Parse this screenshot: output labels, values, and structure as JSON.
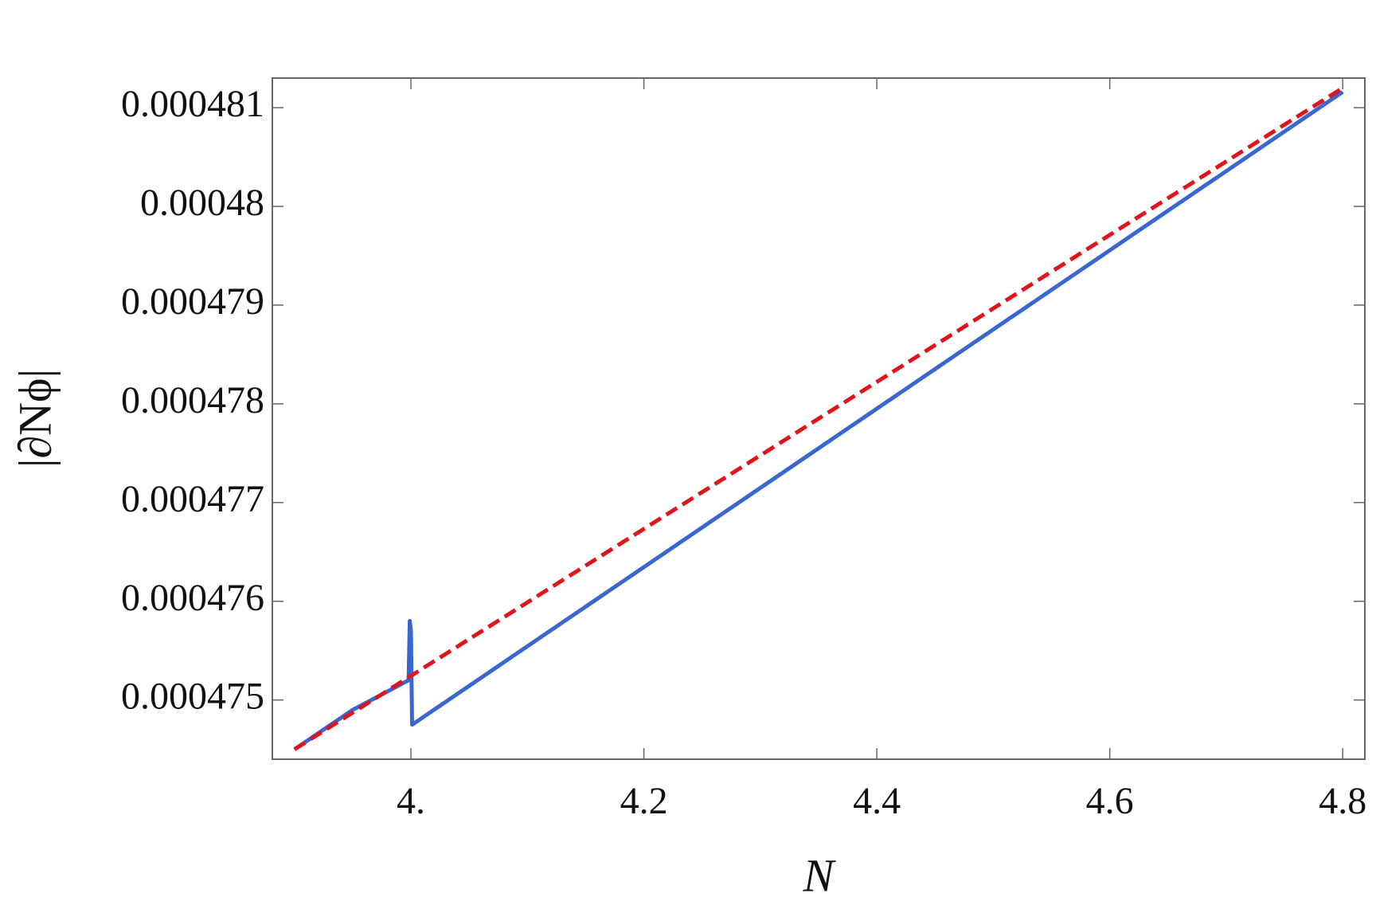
{
  "chart_data": {
    "type": "line",
    "xlabel": "N",
    "ylabel": "|∂Nϕ|",
    "xlim": [
      3.881,
      4.819
    ],
    "ylim": [
      0.0004744,
      0.0004813
    ],
    "xticks": [
      {
        "value": 4,
        "label": "4."
      },
      4.2,
      4.4,
      4.6,
      4.8
    ],
    "yticks": [
      0.000475,
      0.000476,
      0.000477,
      0.000478,
      0.000479,
      0.00048,
      0.000481
    ],
    "series": [
      {
        "color": "#3a66d0",
        "dash": false,
        "x": [
          3.9,
          3.95,
          3.998,
          3.999,
          4.0,
          4.001,
          4.8
        ],
        "values": [
          0.0004745,
          0.0004749,
          0.0004752,
          0.0004758,
          0.0004757,
          0.00047475,
          0.00048116
        ]
      },
      {
        "color": "#e0141c",
        "dash": true,
        "x": [
          3.9,
          4.8
        ],
        "values": [
          0.0004745,
          0.0004812
        ]
      }
    ]
  }
}
